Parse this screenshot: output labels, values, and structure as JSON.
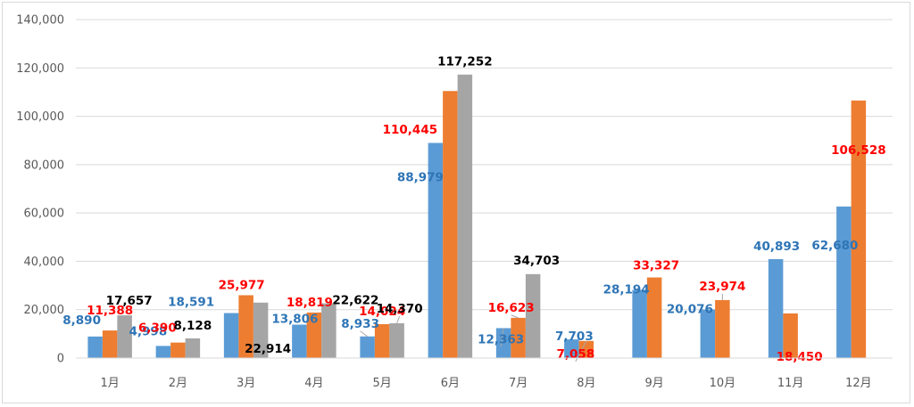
{
  "chart_data": {
    "type": "bar",
    "title": "",
    "xlabel": "",
    "ylabel": "",
    "categories": [
      "1月",
      "2月",
      "3月",
      "4月",
      "5月",
      "6月",
      "7月",
      "8月",
      "9月",
      "10月",
      "11月",
      "12月"
    ],
    "series": [
      {
        "color": "#5b9bd5",
        "label_color": "#2e75b6",
        "values": [
          8890,
          4998,
          18591,
          13806,
          8933,
          88979,
          12363,
          7703,
          28194,
          20076,
          40893,
          62680
        ],
        "labels": [
          "8,890",
          "4,998",
          "18,591",
          "13,806",
          "8,933",
          "88,979",
          "12,363",
          "7,703",
          "28,194",
          "20,076",
          "40,893",
          "62,680"
        ]
      },
      {
        "color": "#ed7d31",
        "label_color": "#ff0000",
        "values": [
          11388,
          6390,
          25977,
          18819,
          14024,
          110445,
          16623,
          7058,
          33327,
          23974,
          18450,
          106528
        ],
        "labels": [
          "11,388",
          "6,390",
          "25,977",
          "18,819",
          "14,024",
          "110,445",
          "16,623",
          "7,058",
          "33,327",
          "23,974",
          "18,450",
          "106,528"
        ]
      },
      {
        "color": "#a5a5a5",
        "label_color": "#000000",
        "values": [
          17657,
          8128,
          22914,
          22622,
          14370,
          117252,
          34703,
          null,
          null,
          null,
          null,
          null
        ],
        "labels": [
          "17,657",
          "8,128",
          "22,914",
          "22,622",
          "14,370",
          "117,252",
          "34,703",
          "",
          "",
          "",
          "",
          ""
        ]
      }
    ],
    "ylim": [
      0,
      140000
    ],
    "yticks": [
      0,
      20000,
      40000,
      60000,
      80000,
      100000,
      120000,
      140000
    ],
    "ytick_labels": [
      "0",
      "20,000",
      "40,000",
      "60,000",
      "80,000",
      "100,000",
      "120,000",
      "140,000"
    ],
    "grid": true,
    "legend": "none"
  }
}
